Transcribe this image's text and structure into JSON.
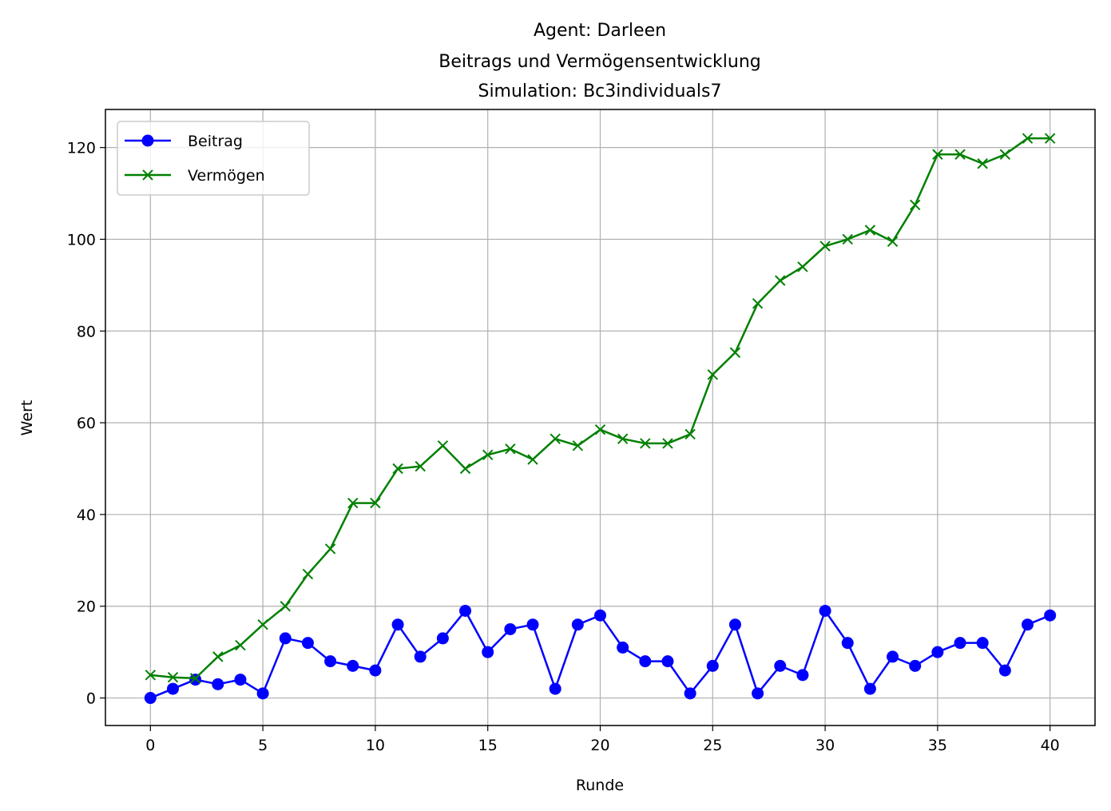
{
  "chart_data": {
    "type": "line",
    "title_lines": [
      "Agent: Darleen",
      "Beitrags und Vermögensentwicklung",
      "Simulation: Bc3individuals7"
    ],
    "xlabel": "Runde",
    "ylabel": "Wert",
    "xlim": [
      -2,
      42
    ],
    "ylim": [
      -6,
      128.3
    ],
    "xticks": [
      0,
      5,
      10,
      15,
      20,
      25,
      30,
      35,
      40
    ],
    "yticks": [
      0,
      20,
      40,
      60,
      80,
      100,
      120
    ],
    "grid": true,
    "legend_position": "top-left",
    "x": [
      0,
      1,
      2,
      3,
      4,
      5,
      6,
      7,
      8,
      9,
      10,
      11,
      12,
      13,
      14,
      15,
      16,
      17,
      18,
      19,
      20,
      21,
      22,
      23,
      24,
      25,
      26,
      27,
      28,
      29,
      30,
      31,
      32,
      33,
      34,
      35,
      36,
      37,
      38,
      39,
      40
    ],
    "series": [
      {
        "name": "Beitrag",
        "color": "#0000ff",
        "marker": "circle",
        "values": [
          0,
          2,
          4,
          3,
          4,
          1,
          13,
          12,
          8,
          7,
          6,
          16,
          9,
          13,
          19,
          10,
          15,
          16,
          2,
          16,
          18,
          11,
          8,
          8,
          1,
          7,
          16,
          1,
          7,
          5,
          19,
          12,
          2,
          9,
          7,
          10,
          12,
          12,
          6,
          16,
          18
        ]
      },
      {
        "name": "Vermögen",
        "color": "#008000",
        "marker": "x",
        "values": [
          5,
          4.5,
          4.3,
          9,
          11.5,
          16,
          20,
          27,
          32.5,
          42.5,
          42.5,
          50,
          50.5,
          55,
          50,
          53,
          54.3,
          52,
          56.5,
          55,
          58.5,
          56.5,
          55.5,
          55.5,
          57.5,
          70.5,
          75.3,
          86,
          91,
          94,
          98.5,
          100,
          102,
          99.5,
          107.5,
          118.5,
          118.5,
          116.5,
          118.5,
          122,
          122
        ]
      }
    ]
  }
}
